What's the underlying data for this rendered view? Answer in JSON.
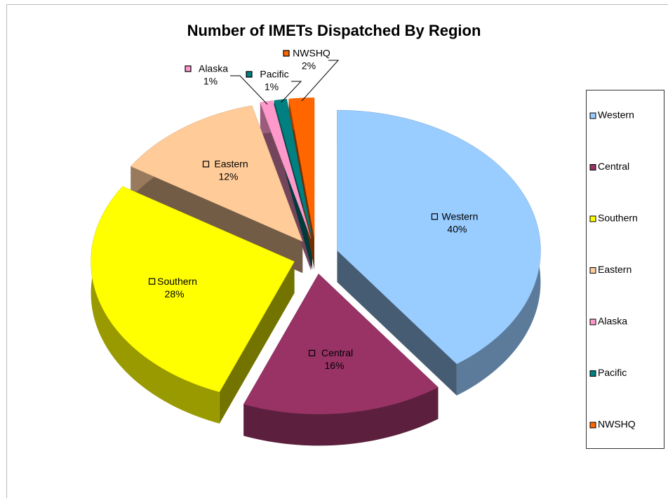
{
  "chart_data": {
    "type": "pie",
    "title": "Number of IMETs Dispatched By Region",
    "categories": [
      "Western",
      "Central",
      "Southern",
      "Eastern",
      "Alaska",
      "Pacific",
      "NWSHQ"
    ],
    "values": [
      40,
      16,
      28,
      12,
      1,
      1,
      2
    ],
    "value_labels": [
      "40%",
      "16%",
      "28%",
      "12%",
      "1%",
      "1%",
      "2%"
    ],
    "colors": [
      "#99ccff",
      "#993366",
      "#ffff00",
      "#ffcc99",
      "#ff99cc",
      "#008080",
      "#ff6600"
    ],
    "legend": "right"
  }
}
